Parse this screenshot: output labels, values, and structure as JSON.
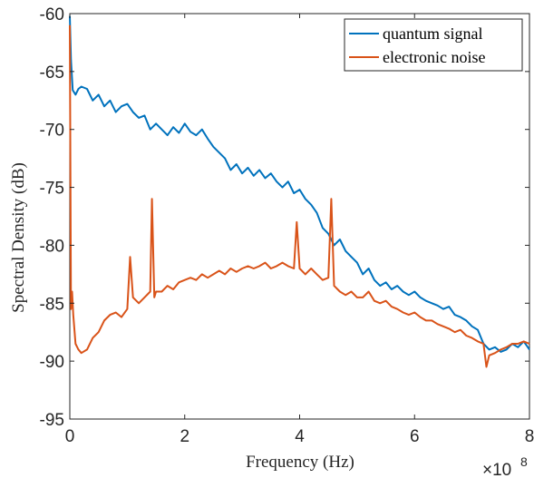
{
  "chart_data": {
    "type": "line",
    "title": "",
    "xlabel": "Frequency (Hz)",
    "ylabel": "Spectral Density (dB)",
    "x_exponent_base": "×10",
    "x_exponent_power": "8",
    "xlim": [
      0,
      8
    ],
    "ylim": [
      -95,
      -60
    ],
    "x_ticks": [
      0,
      2,
      4,
      6,
      8
    ],
    "y_ticks": [
      -60,
      -65,
      -70,
      -75,
      -80,
      -85,
      -90,
      -95
    ],
    "x_tick_labels": [
      "0",
      "2",
      "4",
      "6",
      "8"
    ],
    "y_tick_labels": [
      "-60",
      "-65",
      "-70",
      "-75",
      "-80",
      "-85",
      "-90",
      "-95"
    ],
    "grid": false,
    "legend_position": "top-right",
    "series": [
      {
        "name": "quantum signal",
        "color": "#0072bd",
        "x": [
          0.0,
          0.02,
          0.05,
          0.1,
          0.15,
          0.2,
          0.3,
          0.4,
          0.5,
          0.6,
          0.7,
          0.8,
          0.9,
          1.0,
          1.1,
          1.2,
          1.3,
          1.4,
          1.5,
          1.6,
          1.7,
          1.8,
          1.9,
          2.0,
          2.1,
          2.2,
          2.3,
          2.4,
          2.5,
          2.6,
          2.7,
          2.8,
          2.9,
          3.0,
          3.1,
          3.2,
          3.3,
          3.4,
          3.5,
          3.6,
          3.7,
          3.8,
          3.9,
          4.0,
          4.1,
          4.2,
          4.3,
          4.4,
          4.5,
          4.6,
          4.7,
          4.8,
          4.9,
          5.0,
          5.1,
          5.2,
          5.3,
          5.4,
          5.5,
          5.6,
          5.7,
          5.8,
          5.9,
          6.0,
          6.1,
          6.2,
          6.3,
          6.4,
          6.5,
          6.6,
          6.7,
          6.8,
          6.9,
          7.0,
          7.1,
          7.2,
          7.3,
          7.4,
          7.5,
          7.6,
          7.7,
          7.8,
          7.9,
          8.0
        ],
        "values": [
          -60.2,
          -64.0,
          -66.6,
          -67.0,
          -66.5,
          -66.3,
          -66.5,
          -67.5,
          -67.0,
          -68.0,
          -67.5,
          -68.5,
          -68.0,
          -67.8,
          -68.5,
          -69.0,
          -68.8,
          -70.0,
          -69.5,
          -70.0,
          -70.5,
          -69.8,
          -70.3,
          -69.5,
          -70.2,
          -70.5,
          -70.0,
          -70.8,
          -71.5,
          -72.0,
          -72.5,
          -73.5,
          -73.0,
          -73.8,
          -73.3,
          -74.0,
          -73.5,
          -74.2,
          -73.8,
          -74.5,
          -75.0,
          -74.5,
          -75.5,
          -75.2,
          -76.0,
          -76.5,
          -77.2,
          -78.5,
          -79.0,
          -80.0,
          -79.5,
          -80.5,
          -81.0,
          -81.5,
          -82.5,
          -82.0,
          -83.0,
          -83.5,
          -83.2,
          -83.8,
          -83.5,
          -84.0,
          -84.3,
          -84.0,
          -84.5,
          -84.8,
          -85.0,
          -85.2,
          -85.5,
          -85.3,
          -86.0,
          -86.2,
          -86.5,
          -87.0,
          -87.3,
          -88.5,
          -89.0,
          -88.8,
          -89.2,
          -89.0,
          -88.5,
          -88.8,
          -88.3,
          -89.0
        ]
      },
      {
        "name": "electronic noise",
        "color": "#d95319",
        "x": [
          0.0,
          0.02,
          0.04,
          0.06,
          0.1,
          0.15,
          0.2,
          0.3,
          0.4,
          0.5,
          0.6,
          0.7,
          0.8,
          0.9,
          1.0,
          1.05,
          1.1,
          1.2,
          1.3,
          1.4,
          1.43,
          1.47,
          1.5,
          1.6,
          1.7,
          1.8,
          1.9,
          2.0,
          2.1,
          2.2,
          2.3,
          2.4,
          2.5,
          2.6,
          2.7,
          2.8,
          2.9,
          3.0,
          3.1,
          3.2,
          3.3,
          3.4,
          3.5,
          3.6,
          3.7,
          3.8,
          3.9,
          3.95,
          4.0,
          4.1,
          4.2,
          4.3,
          4.4,
          4.5,
          4.55,
          4.6,
          4.7,
          4.8,
          4.9,
          5.0,
          5.1,
          5.2,
          5.3,
          5.4,
          5.5,
          5.6,
          5.7,
          5.8,
          5.9,
          6.0,
          6.1,
          6.2,
          6.3,
          6.4,
          6.5,
          6.6,
          6.7,
          6.8,
          6.9,
          7.0,
          7.1,
          7.2,
          7.25,
          7.3,
          7.4,
          7.5,
          7.6,
          7.7,
          7.8,
          7.9,
          8.0
        ],
        "values": [
          -61.0,
          -85.5,
          -84.0,
          -86.0,
          -88.5,
          -89.0,
          -89.3,
          -89.0,
          -88.0,
          -87.5,
          -86.5,
          -86.0,
          -85.8,
          -86.2,
          -85.5,
          -81.0,
          -84.5,
          -85.0,
          -84.5,
          -84.0,
          -76.0,
          -84.5,
          -84.0,
          -84.0,
          -83.5,
          -83.8,
          -83.2,
          -83.0,
          -82.8,
          -83.0,
          -82.5,
          -82.8,
          -82.5,
          -82.2,
          -82.5,
          -82.0,
          -82.3,
          -82.0,
          -81.8,
          -82.0,
          -81.8,
          -81.5,
          -82.0,
          -81.8,
          -81.5,
          -81.8,
          -82.0,
          -78.0,
          -82.0,
          -82.5,
          -82.0,
          -82.5,
          -83.0,
          -82.8,
          -76.0,
          -83.5,
          -84.0,
          -84.3,
          -84.0,
          -84.5,
          -84.5,
          -84.0,
          -84.8,
          -85.0,
          -84.8,
          -85.3,
          -85.5,
          -85.8,
          -86.0,
          -85.8,
          -86.2,
          -86.5,
          -86.5,
          -86.8,
          -87.0,
          -87.2,
          -87.5,
          -87.3,
          -87.8,
          -88.0,
          -88.3,
          -88.5,
          -90.5,
          -89.5,
          -89.3,
          -89.0,
          -88.8,
          -88.5,
          -88.5,
          -88.3,
          -88.5
        ]
      }
    ]
  }
}
